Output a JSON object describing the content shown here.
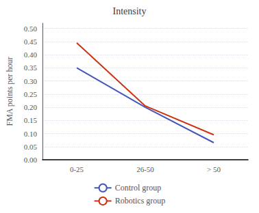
{
  "chart_data": {
    "type": "line",
    "title": "Intensity",
    "ylabel": "FMA points per hour",
    "categories": [
      "0-25",
      "26-50",
      "> 50"
    ],
    "series": [
      {
        "name": "Control group",
        "color": "#4455bb",
        "values": [
          0.35,
          0.2,
          0.065
        ]
      },
      {
        "name": "Robotics group",
        "color": "#cc3311",
        "values": [
          0.445,
          0.205,
          0.095
        ]
      }
    ],
    "ylim": [
      0.0,
      0.52
    ],
    "yticks": [
      {
        "value": 0.0,
        "label": "0.00"
      },
      0.05,
      {
        "value": 0.1,
        "label": "0.10"
      },
      0.15,
      {
        "value": 0.2,
        "label": "0.20"
      },
      0.25,
      {
        "value": 0.3,
        "label": "0.30"
      },
      0.35,
      {
        "value": 0.4,
        "label": "0.40"
      },
      0.45,
      {
        "value": 0.5,
        "label": "0.50"
      }
    ],
    "grid": true,
    "legend": "bottom"
  }
}
